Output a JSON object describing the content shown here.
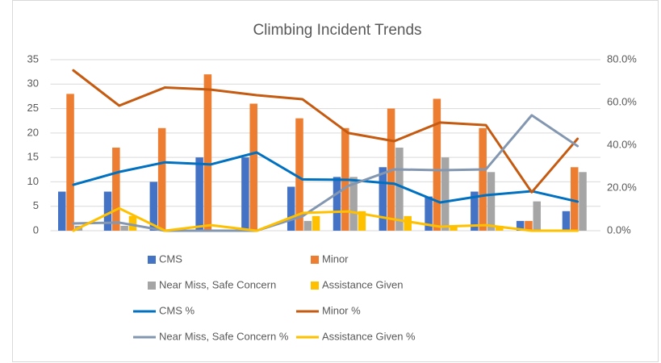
{
  "chart_data": {
    "type": "combo",
    "title": "Climbing Incident Trends",
    "categories": [
      null,
      null,
      null,
      null,
      null,
      null,
      null,
      null,
      null,
      null,
      null,
      null
    ],
    "series": [
      {
        "name": "CMS",
        "type": "bar",
        "color": "#4472c4",
        "values": [
          8,
          8,
          10,
          15,
          15,
          9,
          11,
          13,
          7,
          8,
          2,
          4
        ]
      },
      {
        "name": "Minor",
        "type": "bar",
        "color": "#ed7d31",
        "values": [
          28,
          17,
          21,
          32,
          26,
          23,
          21,
          25,
          27,
          21,
          2,
          13
        ]
      },
      {
        "name": "Near Miss, Safe Concern",
        "type": "bar",
        "color": "#a5a5a5",
        "values": [
          1,
          1,
          0,
          0,
          0,
          2,
          11,
          17,
          15,
          12,
          6,
          12
        ]
      },
      {
        "name": "Assistance Given",
        "type": "bar",
        "color": "#ffc000",
        "values": [
          0,
          3,
          0,
          0,
          0,
          3,
          4,
          3,
          1,
          1,
          0,
          0
        ]
      },
      {
        "name": "CMS %",
        "type": "line",
        "axis": "y2",
        "color": "#0070c0",
        "values": [
          21.5,
          27.5,
          32,
          31,
          36.6,
          24,
          23.8,
          22,
          13.2,
          16.6,
          18.5,
          13.6
        ]
      },
      {
        "name": "Minor %",
        "type": "line",
        "axis": "y2",
        "color": "#c55a11",
        "values": [
          75,
          58.5,
          67,
          66,
          63.4,
          61.5,
          45.7,
          41.9,
          50.6,
          49.4,
          18,
          43
        ]
      },
      {
        "name": "Near Miss, Safe Concern %",
        "type": "line",
        "axis": "y2",
        "color": "#8497b0",
        "values": [
          3.4,
          3.8,
          0,
          0,
          0,
          6.8,
          21,
          28.7,
          28.3,
          28.7,
          54,
          39.6
        ]
      },
      {
        "name": "Assistance Given %",
        "type": "line",
        "axis": "y2",
        "color": "#ffc000",
        "values": [
          0,
          10.5,
          0,
          2.6,
          0,
          8.3,
          9,
          5.3,
          1.9,
          2.6,
          0,
          0
        ]
      }
    ],
    "ylim": [
      0,
      35
    ],
    "yticks": [
      0,
      5,
      10,
      15,
      20,
      25,
      30,
      35
    ],
    "y2lim": [
      0,
      80
    ],
    "y2ticks": [
      {
        "value": 0,
        "label": "0.0%"
      },
      {
        "value": 20,
        "label": "20.0%"
      },
      {
        "value": 40,
        "label": "40.0%"
      },
      {
        "value": 60,
        "label": "60.0%"
      },
      {
        "value": 80,
        "label": "80.0%"
      }
    ],
    "grid": true
  }
}
